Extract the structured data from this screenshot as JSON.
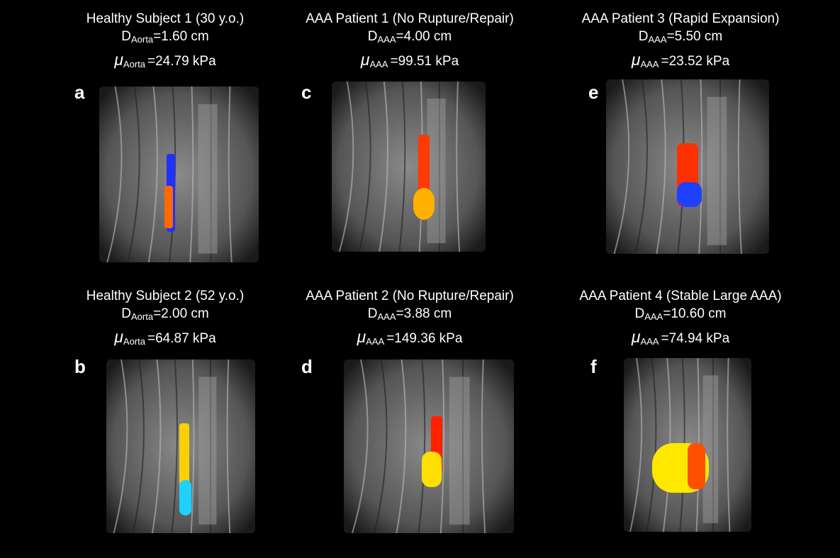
{
  "panels": [
    {
      "letter": "a",
      "title": "Healthy Subject 1 (30 y.o.)",
      "diameter": {
        "symbol": "D",
        "subscript": "Aorta",
        "value": "=1.60 cm"
      },
      "modulus": {
        "symbol": "μ",
        "subscript": "Aorta",
        "value": "=24.79 kPa"
      }
    },
    {
      "letter": "c",
      "title": "AAA Patient 1 (No Rupture/Repair)",
      "diameter": {
        "symbol": "D",
        "subscript": "AAA",
        "value": "=4.00 cm"
      },
      "modulus": {
        "symbol": "μ",
        "subscript": "AAA",
        "value": "=99.51 kPa"
      }
    },
    {
      "letter": "e",
      "title": "AAA Patient 3 (Rapid Expansion)",
      "diameter": {
        "symbol": "D",
        "subscript": "AAA",
        "value": "=5.50 cm"
      },
      "modulus": {
        "symbol": "μ",
        "subscript": "AAA",
        "value": "=23.52 kPa"
      }
    },
    {
      "letter": "b",
      "title": "Healthy Subject 2 (52 y.o.)",
      "diameter": {
        "symbol": "D",
        "subscript": "Aorta",
        "value": "=2.00 cm"
      },
      "modulus": {
        "symbol": "μ",
        "subscript": "Aorta",
        "value": "=64.87 kPa"
      }
    },
    {
      "letter": "d",
      "title": "AAA Patient 2 (No Rupture/Repair)",
      "diameter": {
        "symbol": "D",
        "subscript": "AAA",
        "value": "=3.88 cm"
      },
      "modulus": {
        "symbol": "μ",
        "subscript": "AAA",
        "value": "=149.36 kPa"
      }
    },
    {
      "letter": "f",
      "title": "AAA Patient 4 (Stable Large AAA)",
      "diameter": {
        "symbol": "D",
        "subscript": "AAA",
        "value": "=10.60 cm"
      },
      "modulus": {
        "symbol": "μ",
        "subscript": "AAA",
        "value": "=74.94 kPa"
      }
    }
  ]
}
